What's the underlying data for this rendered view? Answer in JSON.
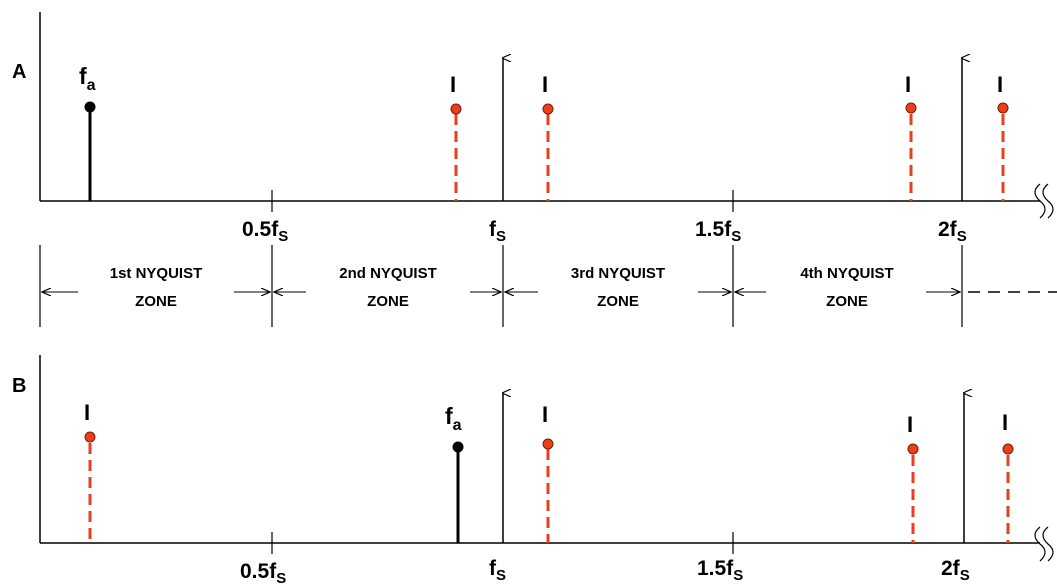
{
  "colors": {
    "signal": "#000000",
    "image": "#e8401c",
    "image_dot": "#e8401c"
  },
  "panels": [
    {
      "id": "A",
      "label": "A",
      "fa_label": "f",
      "fa_sub": "a",
      "image_label": "I",
      "image_count": 4
    },
    {
      "id": "B",
      "label": "B",
      "fa_label": "f",
      "fa_sub": "a",
      "image_label": "I",
      "image_count": 4
    }
  ],
  "ticks": [
    {
      "main": "0.5f",
      "sub": "S"
    },
    {
      "main": "f",
      "sub": "S"
    },
    {
      "main": "1.5f",
      "sub": "S"
    },
    {
      "main": "2f",
      "sub": "S"
    }
  ],
  "zones": [
    {
      "line1": "1st NYQUIST",
      "line2": "ZONE"
    },
    {
      "line1": "2nd NYQUIST",
      "line2": "ZONE"
    },
    {
      "line1": "3rd NYQUIST",
      "line2": "ZONE"
    },
    {
      "line1": "4th NYQUIST",
      "line2": "ZONE"
    }
  ]
}
